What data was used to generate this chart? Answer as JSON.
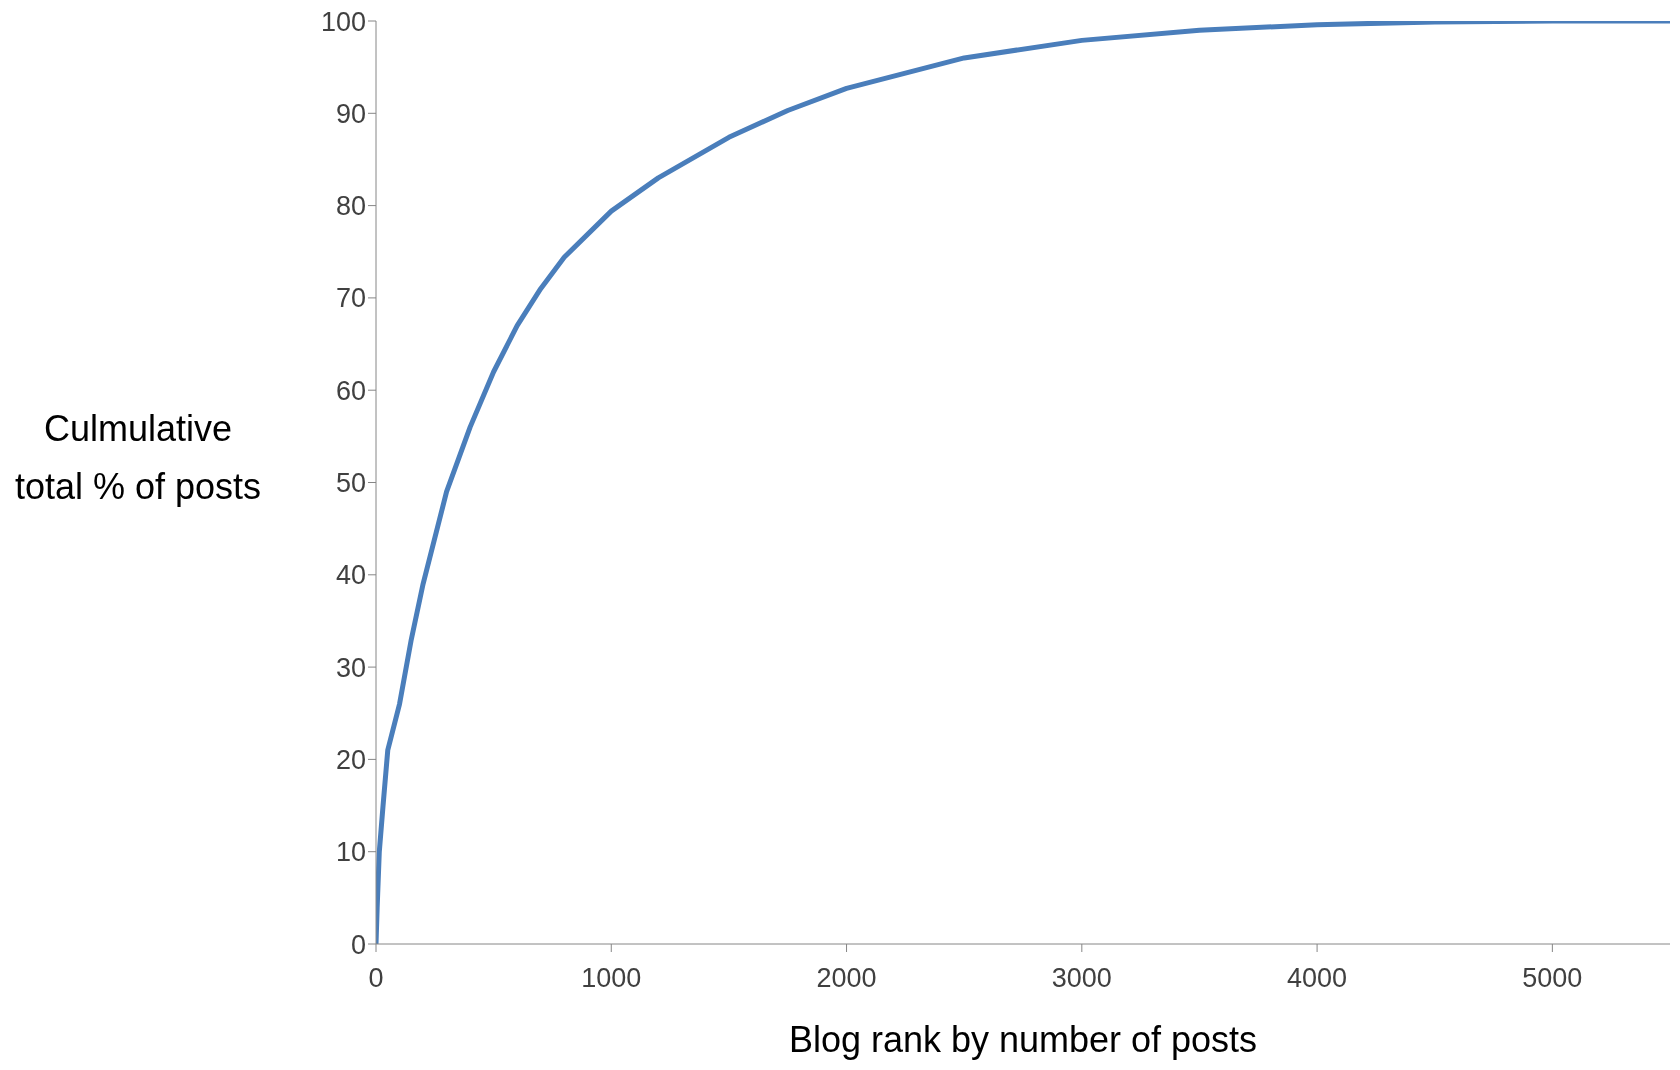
{
  "chart_data": {
    "type": "line",
    "xlabel": "Blog rank by number of posts",
    "ylabel": "Culmulative total % of posts",
    "color": "#4a7ebb",
    "marker": "none",
    "line_style": "solid",
    "grid": false,
    "legend": false,
    "x": [
      0,
      5,
      14,
      30,
      50,
      100,
      150,
      200,
      300,
      400,
      500,
      600,
      700,
      800,
      1000,
      1200,
      1500,
      1750,
      2000,
      2500,
      3000,
      3500,
      4000,
      4500,
      5000,
      5500
    ],
    "values": [
      0,
      4,
      10,
      15,
      21,
      26,
      33,
      39,
      49,
      56,
      62,
      67,
      71,
      74.4,
      79.4,
      83,
      87.4,
      90.3,
      92.7,
      96,
      97.9,
      99,
      99.6,
      99.9,
      100,
      100
    ],
    "xlim": [
      0,
      5500
    ],
    "xticks": [
      0,
      1000,
      2000,
      3000,
      4000,
      5000
    ],
    "ylim": [
      0,
      100
    ],
    "yticks": [
      0,
      10,
      20,
      30,
      40,
      50,
      60,
      70,
      80,
      90,
      100
    ]
  }
}
